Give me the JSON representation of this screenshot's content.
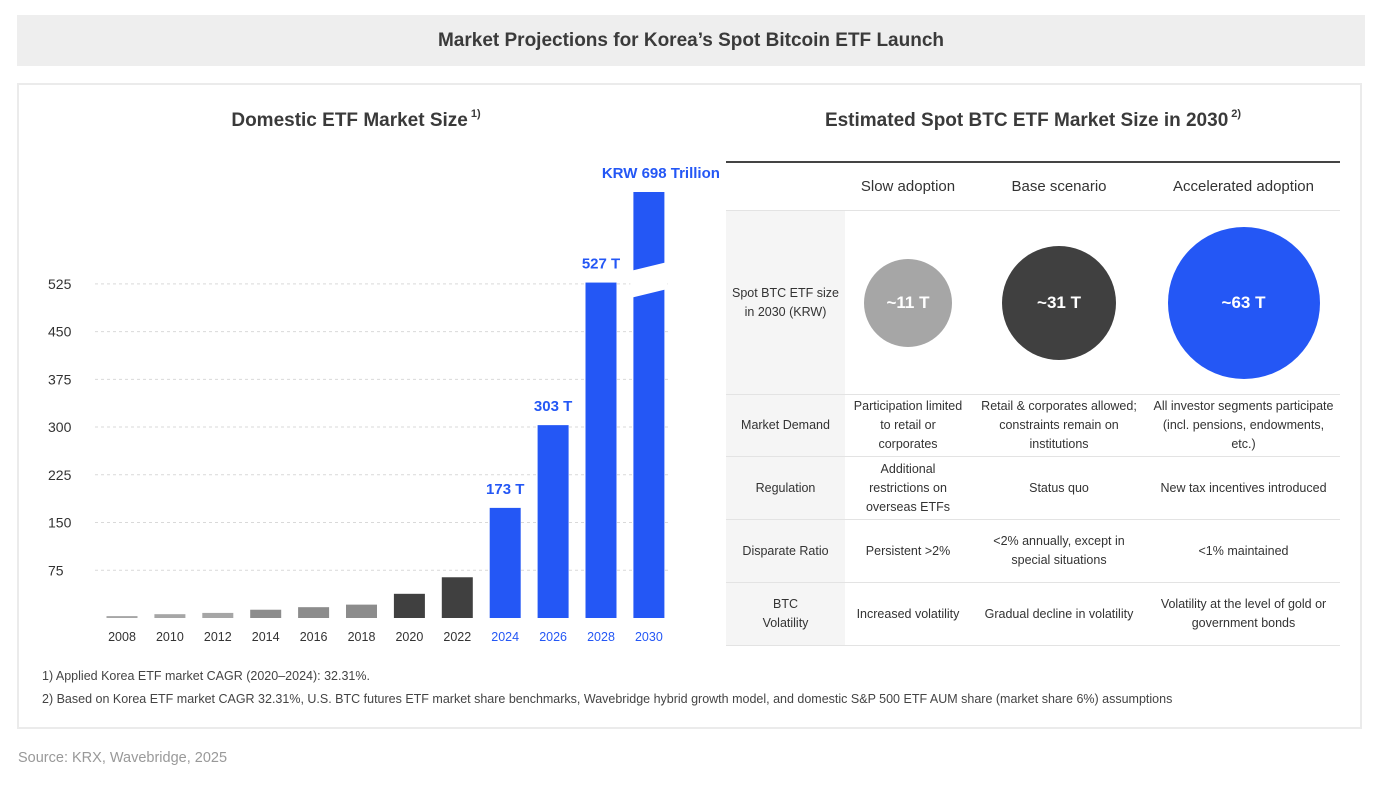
{
  "header": {
    "title": "Market Projections for Korea’s Spot Bitcoin ETF Launch"
  },
  "left_panel": {
    "title": "Domestic ETF Market Size",
    "title_sup": "1)"
  },
  "right_panel": {
    "title": "Estimated Spot BTC ETF Market Size in 2030",
    "title_sup": "2)"
  },
  "chart_data": {
    "type": "bar",
    "title": "Domestic ETF Market Size",
    "categories": [
      "2008",
      "2010",
      "2012",
      "2014",
      "2016",
      "2018",
      "2020",
      "2022",
      "2024",
      "2026",
      "2028",
      "2030"
    ],
    "values": [
      3,
      6,
      8,
      13,
      17,
      21,
      38,
      64,
      173,
      303,
      527,
      698
    ],
    "bar_colors": [
      "#a6a6a6",
      "#a6a6a6",
      "#a6a6a6",
      "#8c8c8c",
      "#8c8c8c",
      "#8c8c8c",
      "#404040",
      "#404040",
      "#2457f5",
      "#2457f5",
      "#2457f5",
      "#2457f5"
    ],
    "data_labels": {
      "2024": "173 T",
      "2026": "303 T",
      "2028": "527 T",
      "2030": "KRW 698 Trillion"
    },
    "yticks": [
      75,
      150,
      225,
      300,
      375,
      450,
      525
    ],
    "ylim": [
      0,
      560
    ],
    "axis_break": "2030",
    "grid": "horizontal dashed",
    "colors": {
      "historical_light": "#a6a6a6",
      "historical_mid": "#8c8c8c",
      "historical_dark": "#404040",
      "projection": "#2457f5"
    }
  },
  "table": {
    "columns": [
      "Slow adoption",
      "Base scenario",
      "Accelerated adoption"
    ],
    "size_row": {
      "label": "Spot BTC ETF size in 2030 (KRW)",
      "values": [
        "~11 T",
        "~31 T",
        "~63 T"
      ],
      "colors": [
        "#a6a6a6",
        "#404040",
        "#2457f5"
      ]
    },
    "rows": [
      {
        "label": "Market Demand",
        "cells": [
          "Participation limited to retail or corporates",
          "Retail & corporates allowed; constraints remain on institutions",
          "All investor segments participate (incl. pensions, endowments, etc.)"
        ]
      },
      {
        "label": "Regulation",
        "cells": [
          "Additional restrictions on overseas ETFs",
          "Status quo",
          "New tax incentives introduced"
        ]
      },
      {
        "label": "Disparate Ratio",
        "cells": [
          "Persistent >2%",
          "<2% annually, except in special situations",
          "<1% maintained"
        ]
      },
      {
        "label": "BTC Volatility",
        "cells": [
          "Increased volatility",
          "Gradual decline in volatility",
          "Volatility at the level of gold or government bonds"
        ]
      }
    ]
  },
  "footnotes": {
    "note1": "1) Applied Korea ETF market CAGR (2020–2024): 32.31%.",
    "note2": "2) Based on Korea ETF market CAGR 32.31%, U.S. BTC futures ETF market share benchmarks, Wavebridge hybrid growth model, and domestic S&P 500 ETF AUM share (market share 6%) assumptions"
  },
  "source": "Source: KRX, Wavebridge, 2025"
}
